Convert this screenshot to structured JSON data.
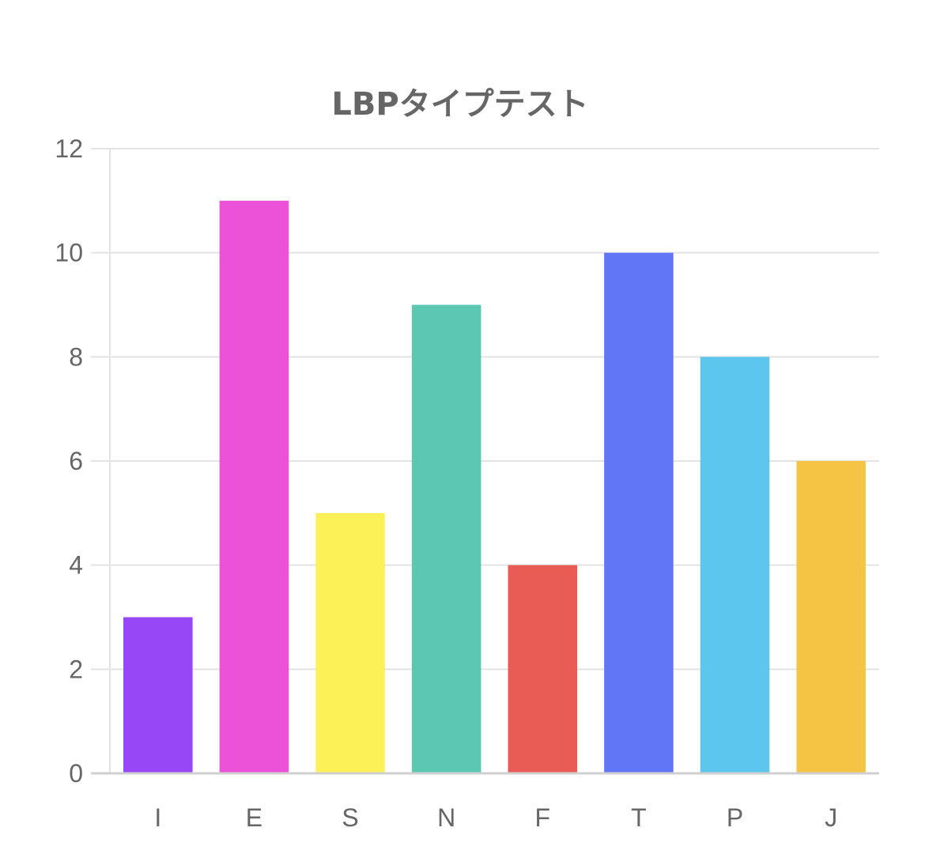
{
  "chart_data": {
    "type": "bar",
    "title": "LBPタイプテスト",
    "categories": [
      "I",
      "E",
      "S",
      "N",
      "F",
      "T",
      "P",
      "J"
    ],
    "values": [
      3,
      11,
      5,
      9,
      4,
      10,
      8,
      6
    ],
    "colors": [
      "#9747f5",
      "#ec52d8",
      "#fcf157",
      "#5cc8b1",
      "#e95b55",
      "#6076f4",
      "#5cc6ec",
      "#f5c444"
    ],
    "xlabel": "",
    "ylabel": "",
    "ylim": [
      0,
      12
    ],
    "yticks": [
      0,
      2,
      4,
      6,
      8,
      10,
      12
    ],
    "grid": true,
    "legend": "none"
  }
}
